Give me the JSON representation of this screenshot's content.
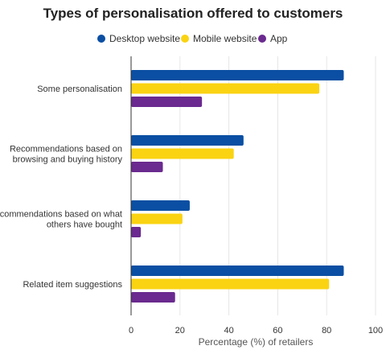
{
  "chart_data": {
    "type": "bar",
    "orientation": "horizontal",
    "title": "Types of personalisation offered to customers",
    "xlabel": "Percentage (%) of retailers",
    "ylabel": "",
    "xlim": [
      0,
      100
    ],
    "xticks": [
      0,
      20,
      40,
      60,
      80,
      100
    ],
    "grid": true,
    "legend_position": "top",
    "categories": [
      [
        "Some personalisation"
      ],
      [
        "Recommendations based on",
        "browsing and buying history"
      ],
      [
        "Recommendations based on what",
        "others have bought"
      ],
      [
        "Related item suggestions"
      ]
    ],
    "series": [
      {
        "name": "Desktop website",
        "color": "#0a4fa3",
        "values": [
          87,
          46,
          24,
          87
        ]
      },
      {
        "name": "Mobile website",
        "color": "#fad312",
        "values": [
          77,
          42,
          21,
          81
        ]
      },
      {
        "name": "App",
        "color": "#6a2a8f",
        "values": [
          29,
          13,
          4,
          18
        ]
      }
    ]
  }
}
